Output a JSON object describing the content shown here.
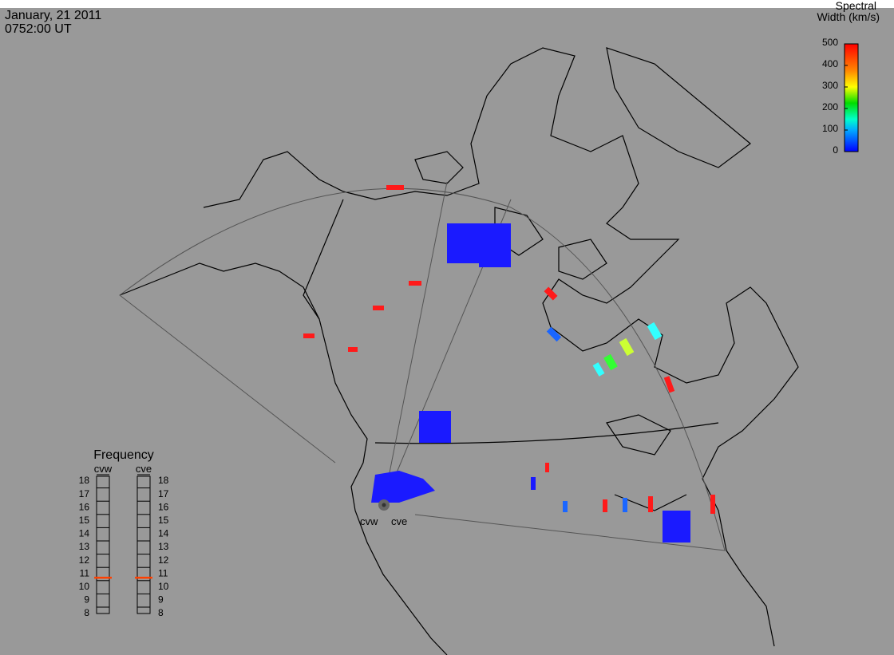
{
  "header": {
    "date": "January, 21 2011",
    "time": "0752:00 UT"
  },
  "colorbar": {
    "title_line1": "Spectral",
    "title_line2": "Width (km/s)",
    "ticks": [
      0,
      100,
      200,
      300,
      400,
      500
    ],
    "range": [
      0,
      500
    ]
  },
  "frequency": {
    "title": "Frequency",
    "ticks": [
      8,
      9,
      10,
      11,
      12,
      13,
      14,
      15,
      16,
      17,
      18
    ],
    "range": [
      8,
      18
    ],
    "radars": [
      {
        "name": "cvw",
        "value": 10.7
      },
      {
        "name": "cve",
        "value": 10.7
      }
    ]
  },
  "sites": [
    {
      "label": "cvw"
    },
    {
      "label": "cve"
    }
  ]
}
